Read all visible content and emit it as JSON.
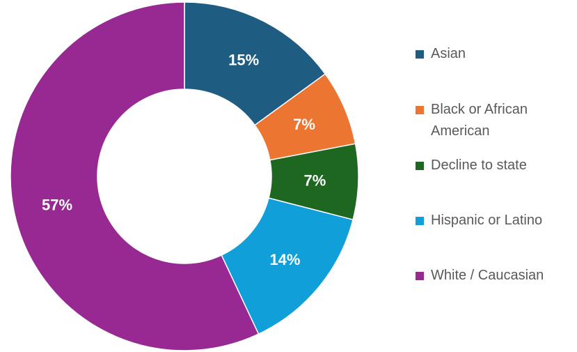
{
  "chart_data": {
    "type": "pie",
    "variant": "donut",
    "categories": [
      "Asian",
      "Black or African American",
      "Decline to state",
      "Hispanic or Latino",
      "White / Caucasian"
    ],
    "values": [
      15,
      7,
      7,
      14,
      57
    ],
    "data_labels": [
      "15%",
      "7%",
      "7%",
      "14%",
      "57%"
    ],
    "colors": [
      "#1F5C82",
      "#EC7531",
      "#1D6720",
      "#109FD8",
      "#982992"
    ],
    "title": "",
    "legend_position": "right",
    "start_angle_deg": 0,
    "direction": "clockwise"
  }
}
